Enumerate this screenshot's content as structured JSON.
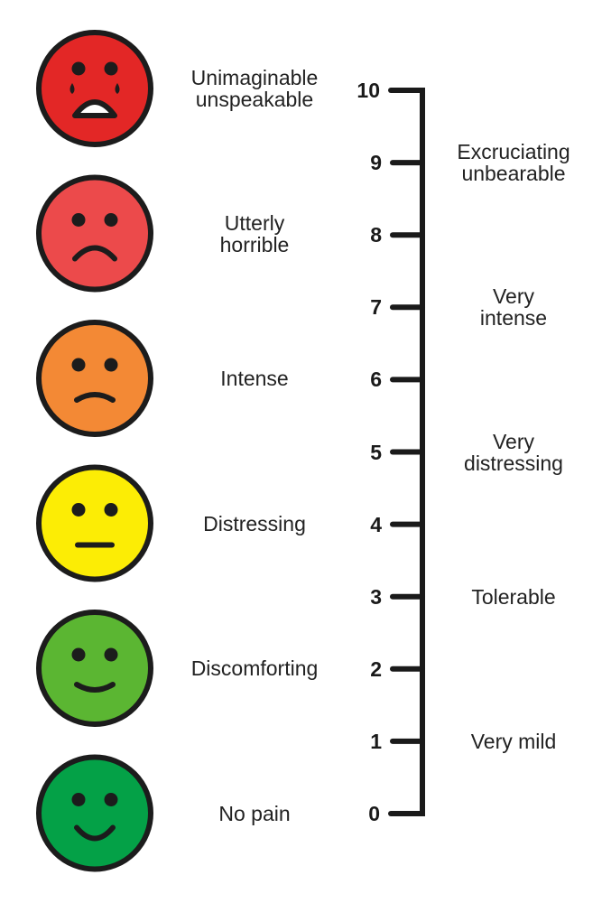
{
  "faces": [
    {
      "label_lines": [
        "Unimaginable",
        "unspeakable"
      ],
      "color": "#e32726",
      "icon": "crying-face-icon"
    },
    {
      "label_lines": [
        "Utterly",
        "horrible"
      ],
      "color": "#ec4a4b",
      "icon": "frowning-face-icon"
    },
    {
      "label_lines": [
        "Intense"
      ],
      "color": "#f38935",
      "icon": "slightly-frowning-face-icon"
    },
    {
      "label_lines": [
        "Distressing"
      ],
      "color": "#fced05",
      "icon": "neutral-face-icon"
    },
    {
      "label_lines": [
        "Discomforting"
      ],
      "color": "#5bb632",
      "icon": "slightly-smiling-face-icon"
    },
    {
      "label_lines": [
        "No pain"
      ],
      "color": "#04a147",
      "icon": "smiling-face-icon"
    }
  ],
  "scale": {
    "ticks": [
      "10",
      "9",
      "8",
      "7",
      "6",
      "5",
      "4",
      "3",
      "2",
      "1",
      "0"
    ],
    "levels": [
      {
        "label_lines": [
          "Excruciating",
          "unbearable"
        ],
        "value": 9
      },
      {
        "label_lines": [
          "Very",
          "intense"
        ],
        "value": 7
      },
      {
        "label_lines": [
          "Very",
          "distressing"
        ],
        "value": 5
      },
      {
        "label_lines": [
          "Tolerable"
        ],
        "value": 3
      },
      {
        "label_lines": [
          "Very mild"
        ],
        "value": 1
      }
    ]
  },
  "colors": {
    "outline": "#1c1c1c",
    "text": "#222222",
    "axis": "#1a1a1a"
  }
}
